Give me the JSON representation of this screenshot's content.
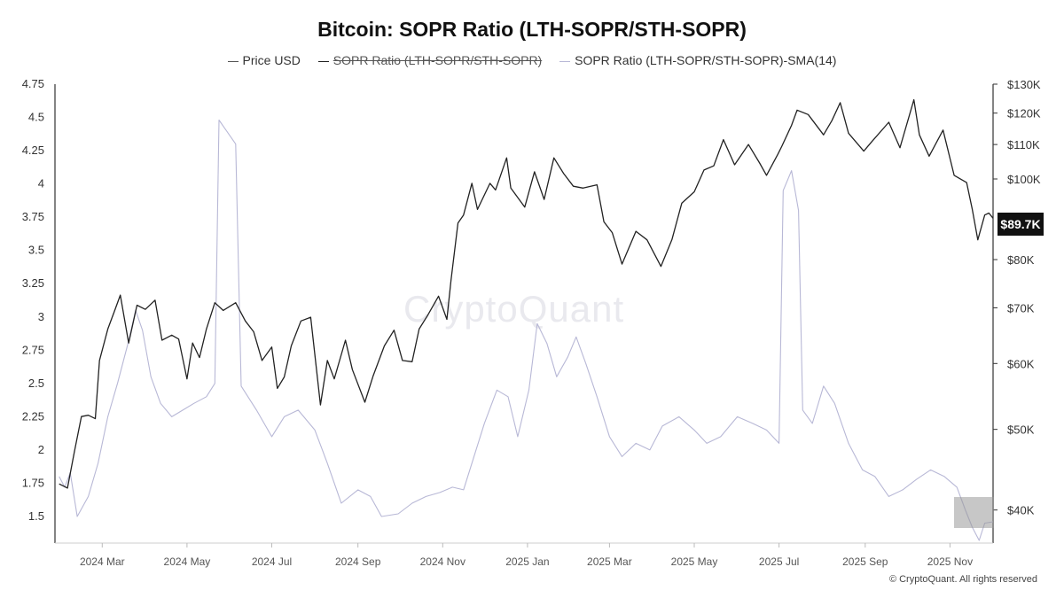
{
  "title": "Bitcoin: SOPR Ratio (LTH-SOPR/STH-SOPR)",
  "legend": [
    {
      "label": "Price USD",
      "color": "#555555",
      "struck": false
    },
    {
      "label": "SOPR Ratio (LTH-SOPR/STH-SOPR)",
      "color": "#222222",
      "struck": true
    },
    {
      "label": "SOPR Ratio (LTH-SOPR/STH-SOPR)-SMA(14)",
      "color": "#b8b8d6",
      "struck": false
    }
  ],
  "watermark": "CryptoQuant",
  "copyright": "© CryptoQuant. All rights reserved",
  "current_price_label": "$89.7K",
  "chart_data": {
    "type": "line",
    "x_range": [
      "2024-01-27",
      "2025-12-02"
    ],
    "left_axis": {
      "ticks": [
        1.5,
        1.75,
        2,
        2.25,
        2.5,
        2.75,
        3,
        3.25,
        3.5,
        3.75,
        4,
        4.25,
        4.5,
        4.75
      ],
      "tick_labels": [
        "1.5",
        "1.75",
        "2",
        "2.25",
        "2.5",
        "2.75",
        "3",
        "3.25",
        "3.5",
        "3.75",
        "4",
        "4.25",
        "4.5",
        "4.75"
      ],
      "ylim": [
        1.3,
        4.75
      ]
    },
    "right_axis": {
      "scale": "log",
      "ticks": [
        40000,
        50000,
        60000,
        70000,
        80000,
        90000,
        100000,
        110000,
        120000,
        130000
      ],
      "tick_labels": [
        "$40K",
        "$50K",
        "$60K",
        "$70K",
        "$80K",
        "",
        "$100K",
        "$110K",
        "$120K",
        "$130K"
      ],
      "ylim": [
        36500,
        130000
      ]
    },
    "x_ticks": [
      {
        "date": "2024-03-01",
        "label": "2024 Mar"
      },
      {
        "date": "2024-05-01",
        "label": "2024 May"
      },
      {
        "date": "2024-07-01",
        "label": "2024 Jul"
      },
      {
        "date": "2024-09-01",
        "label": "2024 Sep"
      },
      {
        "date": "2024-11-01",
        "label": "2024 Nov"
      },
      {
        "date": "2025-01-01",
        "label": "2025 Jan"
      },
      {
        "date": "2025-03-01",
        "label": "2025 Mar"
      },
      {
        "date": "2025-05-01",
        "label": "2025 May"
      },
      {
        "date": "2025-07-01",
        "label": "2025 Jul"
      },
      {
        "date": "2025-09-01",
        "label": "2025 Sep"
      },
      {
        "date": "2025-11-01",
        "label": "2025 Nov"
      }
    ],
    "series": [
      {
        "name": "Price USD",
        "axis": "right",
        "color": "#222222",
        "points": [
          [
            "2024-01-30",
            43000
          ],
          [
            "2024-02-05",
            42500
          ],
          [
            "2024-02-10",
            47000
          ],
          [
            "2024-02-15",
            51800
          ],
          [
            "2024-02-20",
            52000
          ],
          [
            "2024-02-25",
            51500
          ],
          [
            "2024-02-28",
            60500
          ],
          [
            "2024-03-05",
            66000
          ],
          [
            "2024-03-10",
            69500
          ],
          [
            "2024-03-14",
            72500
          ],
          [
            "2024-03-20",
            63500
          ],
          [
            "2024-03-26",
            70500
          ],
          [
            "2024-04-01",
            69700
          ],
          [
            "2024-04-08",
            71500
          ],
          [
            "2024-04-13",
            64000
          ],
          [
            "2024-04-20",
            64900
          ],
          [
            "2024-04-25",
            64200
          ],
          [
            "2024-05-01",
            57500
          ],
          [
            "2024-05-05",
            63500
          ],
          [
            "2024-05-10",
            61000
          ],
          [
            "2024-05-15",
            66000
          ],
          [
            "2024-05-21",
            71000
          ],
          [
            "2024-05-27",
            69500
          ],
          [
            "2024-06-05",
            71000
          ],
          [
            "2024-06-12",
            67500
          ],
          [
            "2024-06-18",
            65500
          ],
          [
            "2024-06-24",
            60500
          ],
          [
            "2024-07-01",
            62800
          ],
          [
            "2024-07-05",
            56000
          ],
          [
            "2024-07-10",
            57800
          ],
          [
            "2024-07-15",
            63000
          ],
          [
            "2024-07-22",
            67500
          ],
          [
            "2024-07-29",
            68200
          ],
          [
            "2024-08-05",
            53500
          ],
          [
            "2024-08-10",
            60500
          ],
          [
            "2024-08-15",
            57500
          ],
          [
            "2024-08-23",
            64000
          ],
          [
            "2024-08-28",
            59000
          ],
          [
            "2024-09-06",
            53900
          ],
          [
            "2024-09-12",
            58000
          ],
          [
            "2024-09-20",
            63000
          ],
          [
            "2024-09-27",
            65800
          ],
          [
            "2024-10-03",
            60500
          ],
          [
            "2024-10-10",
            60300
          ],
          [
            "2024-10-15",
            66000
          ],
          [
            "2024-10-21",
            68500
          ],
          [
            "2024-10-29",
            72300
          ],
          [
            "2024-11-04",
            67800
          ],
          [
            "2024-11-07",
            75600
          ],
          [
            "2024-11-12",
            88500
          ],
          [
            "2024-11-16",
            90500
          ],
          [
            "2024-11-22",
            98800
          ],
          [
            "2024-11-26",
            91900
          ],
          [
            "2024-12-05",
            98800
          ],
          [
            "2024-12-09",
            97000
          ],
          [
            "2024-12-17",
            106000
          ],
          [
            "2024-12-20",
            97500
          ],
          [
            "2024-12-30",
            92500
          ],
          [
            "2025-01-06",
            102000
          ],
          [
            "2025-01-13",
            94500
          ],
          [
            "2025-01-20",
            106000
          ],
          [
            "2025-01-27",
            101500
          ],
          [
            "2025-02-03",
            98000
          ],
          [
            "2025-02-10",
            97500
          ],
          [
            "2025-02-20",
            98400
          ],
          [
            "2025-02-25",
            88800
          ],
          [
            "2025-03-03",
            86200
          ],
          [
            "2025-03-10",
            79000
          ],
          [
            "2025-03-20",
            86500
          ],
          [
            "2025-03-28",
            84500
          ],
          [
            "2025-04-07",
            78500
          ],
          [
            "2025-04-15",
            84600
          ],
          [
            "2025-04-22",
            93500
          ],
          [
            "2025-05-01",
            96500
          ],
          [
            "2025-05-08",
            102500
          ],
          [
            "2025-05-15",
            103700
          ],
          [
            "2025-05-22",
            111500
          ],
          [
            "2025-05-30",
            104000
          ],
          [
            "2025-06-09",
            110000
          ],
          [
            "2025-06-17",
            104500
          ],
          [
            "2025-06-22",
            101000
          ],
          [
            "2025-06-30",
            107000
          ],
          [
            "2025-07-03",
            109500
          ],
          [
            "2025-07-10",
            116000
          ],
          [
            "2025-07-14",
            121000
          ],
          [
            "2025-07-22",
            119500
          ],
          [
            "2025-08-02",
            113000
          ],
          [
            "2025-08-08",
            117500
          ],
          [
            "2025-08-14",
            123500
          ],
          [
            "2025-08-20",
            113500
          ],
          [
            "2025-08-31",
            108000
          ],
          [
            "2025-09-06",
            111000
          ],
          [
            "2025-09-18",
            117000
          ],
          [
            "2025-09-26",
            109000
          ],
          [
            "2025-10-06",
            124500
          ],
          [
            "2025-10-10",
            113000
          ],
          [
            "2025-10-17",
            106500
          ],
          [
            "2025-10-27",
            114500
          ],
          [
            "2025-11-04",
            101000
          ],
          [
            "2025-11-13",
            99000
          ],
          [
            "2025-11-17",
            92000
          ],
          [
            "2025-11-21",
            84500
          ],
          [
            "2025-11-26",
            90500
          ],
          [
            "2025-11-29",
            91000
          ],
          [
            "2025-12-02",
            89700
          ]
        ]
      },
      {
        "name": "SOPR Ratio (LTH-SOPR/STH-SOPR)-SMA(14)",
        "axis": "left",
        "color": "#b8b8d6",
        "points": [
          [
            "2024-01-30",
            1.8
          ],
          [
            "2024-02-03",
            1.72
          ],
          [
            "2024-02-07",
            1.83
          ],
          [
            "2024-02-12",
            1.5
          ],
          [
            "2024-02-20",
            1.65
          ],
          [
            "2024-02-27",
            1.9
          ],
          [
            "2024-03-05",
            2.25
          ],
          [
            "2024-03-12",
            2.5
          ],
          [
            "2024-03-20",
            2.82
          ],
          [
            "2024-03-25",
            3.05
          ],
          [
            "2024-03-30",
            2.9
          ],
          [
            "2024-04-05",
            2.55
          ],
          [
            "2024-04-12",
            2.35
          ],
          [
            "2024-04-20",
            2.25
          ],
          [
            "2024-04-28",
            2.3
          ],
          [
            "2024-05-06",
            2.35
          ],
          [
            "2024-05-15",
            2.4
          ],
          [
            "2024-05-21",
            2.5
          ],
          [
            "2024-05-24",
            4.48
          ],
          [
            "2024-06-05",
            4.3
          ],
          [
            "2024-06-09",
            2.48
          ],
          [
            "2024-06-20",
            2.3
          ],
          [
            "2024-07-01",
            2.1
          ],
          [
            "2024-07-10",
            2.25
          ],
          [
            "2024-07-20",
            2.3
          ],
          [
            "2024-08-01",
            2.15
          ],
          [
            "2024-08-10",
            1.9
          ],
          [
            "2024-08-20",
            1.6
          ],
          [
            "2024-09-01",
            1.7
          ],
          [
            "2024-09-10",
            1.65
          ],
          [
            "2024-09-18",
            1.5
          ],
          [
            "2024-09-30",
            1.52
          ],
          [
            "2024-10-10",
            1.6
          ],
          [
            "2024-10-20",
            1.65
          ],
          [
            "2024-10-30",
            1.68
          ],
          [
            "2024-11-08",
            1.72
          ],
          [
            "2024-11-16",
            1.7
          ],
          [
            "2024-11-22",
            1.9
          ],
          [
            "2024-12-01",
            2.2
          ],
          [
            "2024-12-10",
            2.45
          ],
          [
            "2024-12-18",
            2.4
          ],
          [
            "2024-12-25",
            2.1
          ],
          [
            "2025-01-02",
            2.45
          ],
          [
            "2025-01-08",
            2.95
          ],
          [
            "2025-01-15",
            2.8
          ],
          [
            "2025-01-22",
            2.55
          ],
          [
            "2025-01-30",
            2.7
          ],
          [
            "2025-02-05",
            2.85
          ],
          [
            "2025-02-12",
            2.65
          ],
          [
            "2025-02-20",
            2.4
          ],
          [
            "2025-03-01",
            2.1
          ],
          [
            "2025-03-10",
            1.95
          ],
          [
            "2025-03-20",
            2.05
          ],
          [
            "2025-03-30",
            2.0
          ],
          [
            "2025-04-08",
            2.18
          ],
          [
            "2025-04-20",
            2.25
          ],
          [
            "2025-05-01",
            2.15
          ],
          [
            "2025-05-10",
            2.05
          ],
          [
            "2025-05-20",
            2.1
          ],
          [
            "2025-06-01",
            2.25
          ],
          [
            "2025-06-12",
            2.2
          ],
          [
            "2025-06-22",
            2.15
          ],
          [
            "2025-07-01",
            2.05
          ],
          [
            "2025-07-04",
            3.95
          ],
          [
            "2025-07-10",
            4.1
          ],
          [
            "2025-07-15",
            3.8
          ],
          [
            "2025-07-18",
            2.3
          ],
          [
            "2025-07-25",
            2.2
          ],
          [
            "2025-08-02",
            2.48
          ],
          [
            "2025-08-10",
            2.35
          ],
          [
            "2025-08-20",
            2.05
          ],
          [
            "2025-08-30",
            1.85
          ],
          [
            "2025-09-08",
            1.8
          ],
          [
            "2025-09-18",
            1.65
          ],
          [
            "2025-09-28",
            1.7
          ],
          [
            "2025-10-08",
            1.78
          ],
          [
            "2025-10-18",
            1.85
          ],
          [
            "2025-10-28",
            1.8
          ],
          [
            "2025-11-06",
            1.72
          ],
          [
            "2025-11-12",
            1.55
          ],
          [
            "2025-11-17",
            1.42
          ],
          [
            "2025-11-22",
            1.32
          ],
          [
            "2025-11-26",
            1.45
          ],
          [
            "2025-12-02",
            1.46
          ]
        ]
      }
    ]
  }
}
